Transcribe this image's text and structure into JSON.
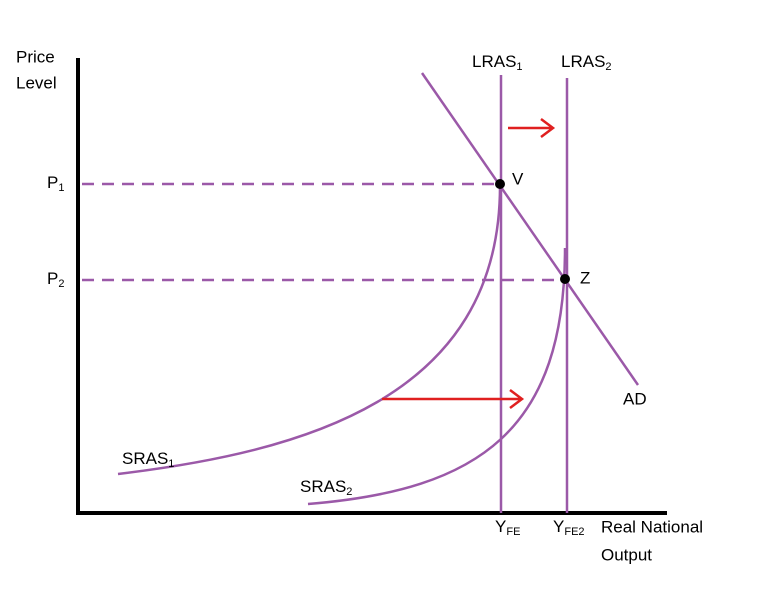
{
  "axes": {
    "y_label": [
      "Price",
      "Level"
    ],
    "x_label": [
      "Real National",
      "Output"
    ]
  },
  "curves": {
    "lras1": {
      "text": "LRAS",
      "sub": "1"
    },
    "lras2": {
      "text": "LRAS",
      "sub": "2"
    },
    "ad": {
      "text": "AD"
    },
    "sras1": {
      "text": "SRAS",
      "sub": "1"
    },
    "sras2": {
      "text": "SRAS",
      "sub": "2"
    }
  },
  "price_levels": {
    "p1": {
      "text": "P",
      "sub": "1"
    },
    "p2": {
      "text": "P",
      "sub": "2"
    }
  },
  "outputs": {
    "yfe": {
      "text": "Y",
      "sub": "FE"
    },
    "yfe2": {
      "text": "Y",
      "sub": "FE2"
    }
  },
  "points": {
    "v": "V",
    "z": "Z"
  }
}
